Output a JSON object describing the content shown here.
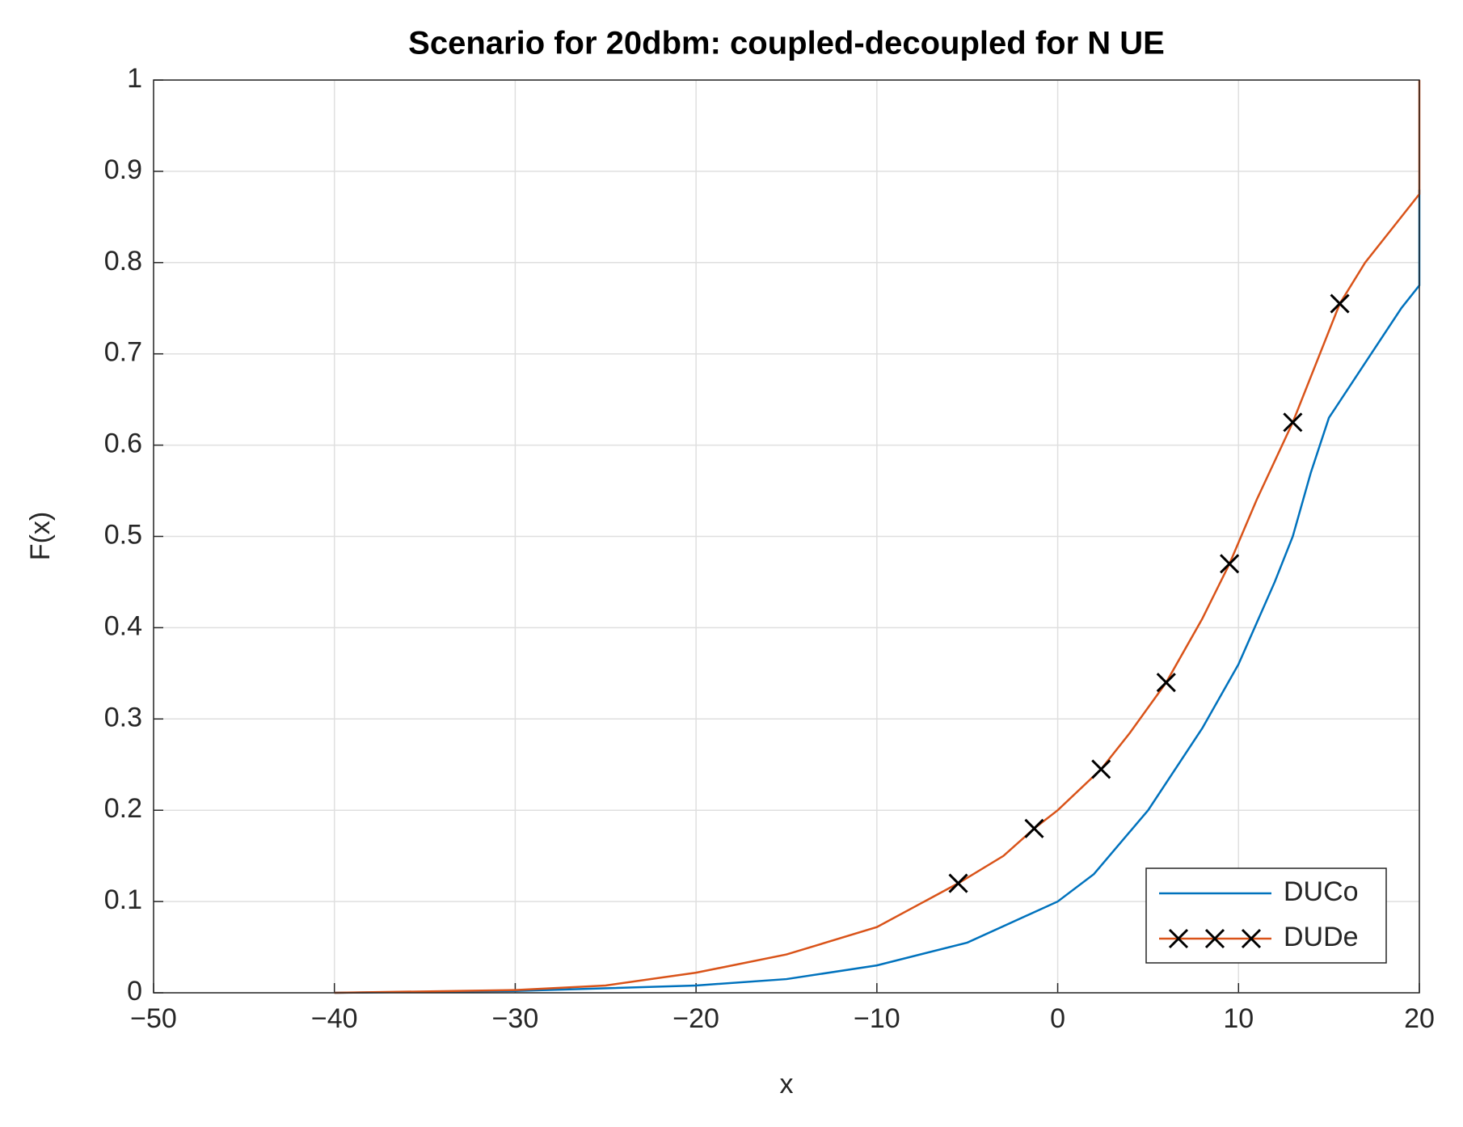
{
  "chart_data": {
    "type": "line",
    "title": "Scenario for 20dbm: coupled-decoupled for N UE",
    "xlabel": "x",
    "ylabel": "F(x)",
    "xlim": [
      -50,
      20
    ],
    "xticks": [
      {
        "value": -50,
        "label": "−50"
      },
      {
        "value": -40,
        "label": "−40"
      },
      {
        "value": -30,
        "label": "−30"
      },
      {
        "value": -20,
        "label": "−20"
      },
      {
        "value": -10,
        "label": "−10"
      },
      0,
      10,
      20
    ],
    "ylim": [
      0,
      1
    ],
    "yticks": [
      0,
      0.1,
      0.2,
      0.3,
      0.4,
      0.5,
      0.6,
      0.7,
      0.8,
      0.9,
      1
    ],
    "grid": true,
    "legend": "lower right",
    "series": [
      {
        "name": "DUCo",
        "color": "#0072bd",
        "x": [
          -40,
          -30,
          -20,
          -15,
          -10,
          -5,
          0,
          2,
          5,
          8,
          10,
          12,
          13,
          14,
          15,
          17,
          19,
          20,
          20
        ],
        "values": [
          0,
          0.002,
          0.008,
          0.015,
          0.03,
          0.055,
          0.1,
          0.13,
          0.2,
          0.29,
          0.36,
          0.45,
          0.5,
          0.57,
          0.63,
          0.69,
          0.75,
          0.775,
          0.88
        ]
      },
      {
        "name": "DUDe",
        "color": "#d95319",
        "x": [
          -40,
          -30,
          -25,
          -20,
          -15,
          -10,
          -5.5,
          -3,
          -1.3,
          0,
          2.4,
          4,
          6,
          8,
          9.5,
          11,
          13,
          14.5,
          15.6,
          17,
          19,
          20,
          20
        ],
        "values": [
          0,
          0.003,
          0.008,
          0.022,
          0.042,
          0.072,
          0.12,
          0.15,
          0.18,
          0.2,
          0.245,
          0.285,
          0.34,
          0.41,
          0.47,
          0.54,
          0.625,
          0.7,
          0.755,
          0.8,
          0.85,
          0.875,
          1
        ],
        "markers": {
          "color": "#000000",
          "x": [
            -5.5,
            -1.3,
            2.4,
            6,
            9.5,
            13,
            15.6
          ],
          "values": [
            0.12,
            0.18,
            0.245,
            0.34,
            0.47,
            0.625,
            0.755
          ]
        }
      }
    ]
  }
}
